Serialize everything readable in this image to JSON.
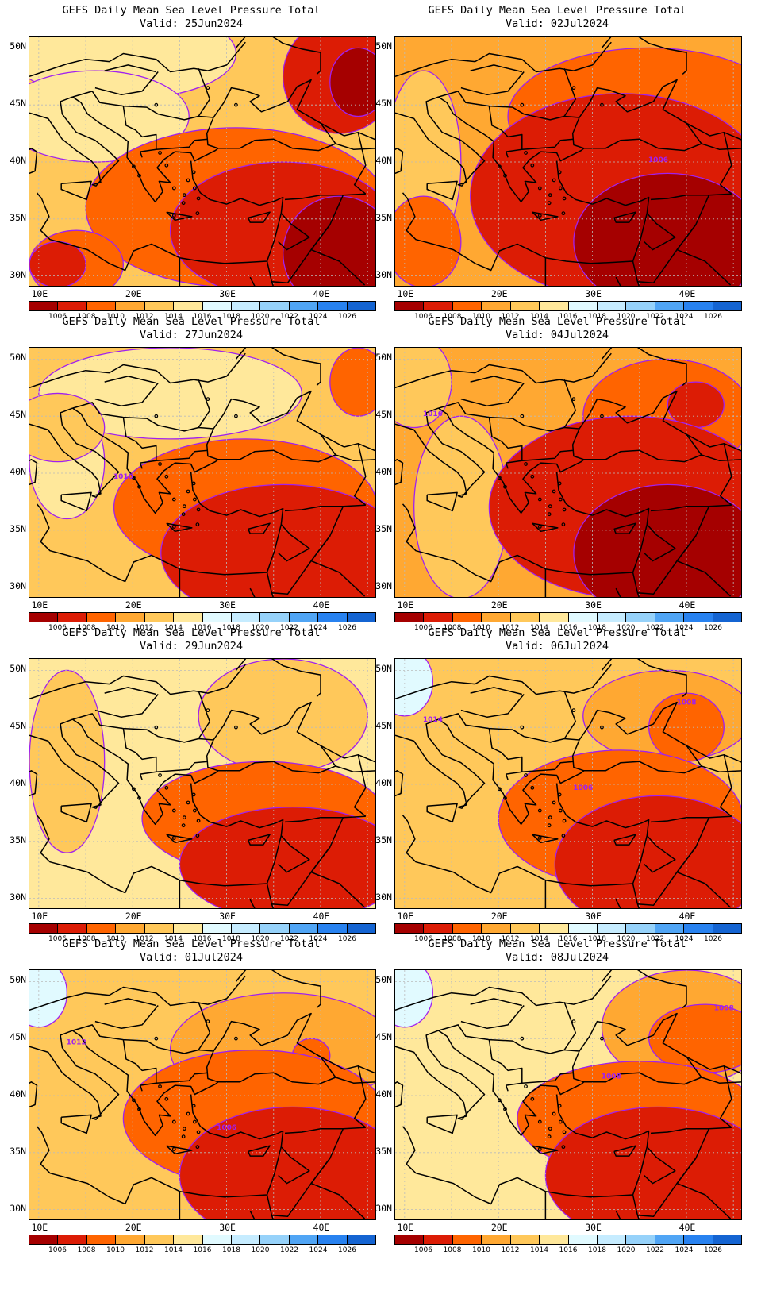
{
  "colors": {
    "c1004": "#a50000",
    "c1006": "#dc1c05",
    "c1008": "#ff6400",
    "c1010": "#ffa832",
    "c1012": "#ffc85a",
    "c1014": "#ffe89b",
    "c1016": "#e1faff",
    "c1018": "#c6ecff",
    "c1020": "#96d2fa",
    "c1022": "#50a5f5",
    "c1024": "#2882f0",
    "c1026": "#1464d2",
    "contour": "#a020f0",
    "grid": "#bbbbbb"
  },
  "colorbar": {
    "labels": [
      "1006",
      "1008",
      "1010",
      "1012",
      "1014",
      "1016",
      "1018",
      "1020",
      "1022",
      "1024",
      "1026"
    ]
  },
  "axes": {
    "lat_labels": [
      "50N",
      "45N",
      "40N",
      "35N",
      "30N"
    ],
    "lon_labels": [
      "10E",
      "20E",
      "30E",
      "40E"
    ],
    "lat_range": [
      29,
      51
    ],
    "lon_range": [
      9,
      46
    ]
  },
  "panels": [
    {
      "title": "GEFS Daily Mean Sea Level Pressure Total",
      "valid": "Valid: 25Jun2024",
      "contour_labels": []
    },
    {
      "title": "GEFS Daily Mean Sea Level Pressure Total",
      "valid": "Valid: 02Jul2024",
      "contour_labels": [
        "1006"
      ]
    },
    {
      "title": "GEFS Daily Mean Sea Level Pressure Total",
      "valid": "Valid: 27Jun2024",
      "contour_labels": [
        "1010"
      ]
    },
    {
      "title": "GEFS Daily Mean Sea Level Pressure Total",
      "valid": "Valid: 04Jul2024",
      "contour_labels": [
        "1016"
      ]
    },
    {
      "title": "GEFS Daily Mean Sea Level Pressure Total",
      "valid": "Valid: 29Jun2024",
      "contour_labels": []
    },
    {
      "title": "GEFS Daily Mean Sea Level Pressure Total",
      "valid": "Valid: 06Jul2024",
      "contour_labels": [
        "1014",
        "1006",
        "1008"
      ]
    },
    {
      "title": "GEFS Daily Mean Sea Level Pressure Total",
      "valid": "Valid: 01Jul2024",
      "contour_labels": [
        "1012",
        "1006"
      ]
    },
    {
      "title": "GEFS Daily Mean Sea Level Pressure Total",
      "valid": "Valid: 08Jul2024",
      "contour_labels": [
        "1008",
        "1008"
      ]
    }
  ]
}
